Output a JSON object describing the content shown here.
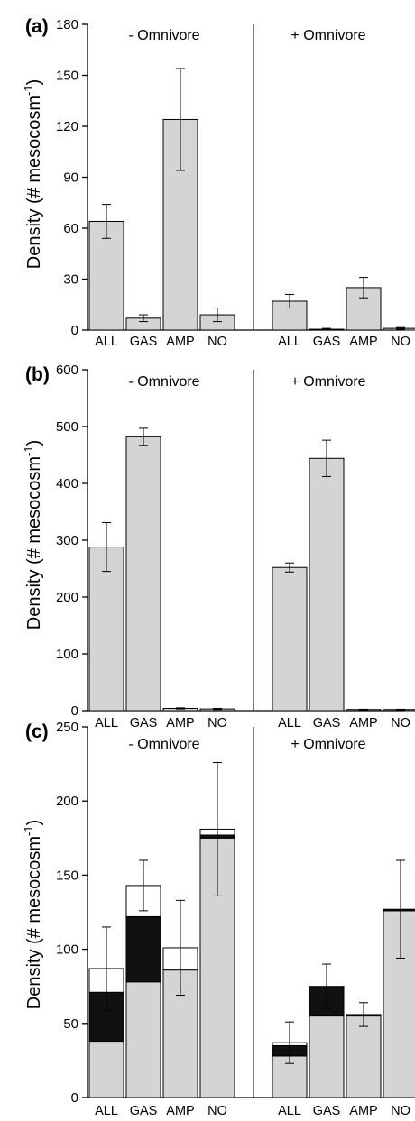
{
  "colors": {
    "gray": "#d4d4d4",
    "black": "#111111",
    "white": "#ffffff",
    "stroke": "#000000"
  },
  "chart_data": [
    {
      "type": "bar",
      "panel": "(a)",
      "ylabel": "Density (# mesocosm",
      "ylabel_sup": "-1",
      "ylabel_close": ")",
      "ylim": [
        0,
        180
      ],
      "yticks": [
        0,
        30,
        60,
        90,
        120,
        150,
        180
      ],
      "grid": false,
      "groups": [
        {
          "title": "- Omnivore",
          "categories": [
            "ALL",
            "GAS",
            "AMP",
            "NO"
          ],
          "values": [
            64,
            7,
            124,
            9
          ],
          "errors": [
            10,
            2,
            30,
            4
          ]
        },
        {
          "title": "+ Omnivore",
          "categories": [
            "ALL",
            "GAS",
            "AMP",
            "NO"
          ],
          "values": [
            17,
            0.5,
            25,
            1
          ],
          "errors": [
            4,
            0.5,
            6,
            0.5
          ]
        }
      ]
    },
    {
      "type": "bar",
      "panel": "(b)",
      "ylabel": "Density (# mesocosm",
      "ylabel_sup": "-1",
      "ylabel_close": ")",
      "ylim": [
        0,
        600
      ],
      "yticks": [
        0,
        100,
        200,
        300,
        400,
        500,
        600
      ],
      "grid": false,
      "groups": [
        {
          "title": "- Omnivore",
          "categories": [
            "ALL",
            "GAS",
            "AMP",
            "NO"
          ],
          "values": [
            288,
            482,
            4,
            3
          ],
          "errors": [
            43,
            15,
            1,
            1
          ]
        },
        {
          "title": "+ Omnivore",
          "categories": [
            "ALL",
            "GAS",
            "AMP",
            "NO"
          ],
          "values": [
            252,
            444,
            2,
            2
          ],
          "errors": [
            8,
            32,
            0.5,
            0.5
          ]
        }
      ]
    },
    {
      "type": "stacked-bar",
      "panel": "(c)",
      "ylabel": "Density (# mesocosm",
      "ylabel_sup": "-1",
      "ylabel_close": ")",
      "ylim": [
        0,
        250
      ],
      "yticks": [
        0,
        50,
        100,
        150,
        200,
        250
      ],
      "grid": false,
      "groups": [
        {
          "title": "- Omnivore",
          "categories": [
            "ALL",
            "GAS",
            "AMP",
            "NO"
          ],
          "segments": [
            {
              "gray": 38,
              "black": 33,
              "white": 16,
              "error": 28
            },
            {
              "gray": 78,
              "black": 44,
              "white": 21,
              "error": 17
            },
            {
              "gray": 86,
              "black": 0,
              "white": 15,
              "error": 32
            },
            {
              "gray": 175,
              "black": 2,
              "white": 4,
              "error": 45
            }
          ]
        },
        {
          "title": "+ Omnivore",
          "categories": [
            "ALL",
            "GAS",
            "AMP",
            "NO"
          ],
          "segments": [
            {
              "gray": 28,
              "black": 7,
              "white": 2,
              "error": 14
            },
            {
              "gray": 55,
              "black": 20,
              "white": 0,
              "error": 15
            },
            {
              "gray": 55,
              "black": 1,
              "white": 0,
              "error": 8
            },
            {
              "gray": 126,
              "black": 1,
              "white": 0,
              "error": 33
            }
          ]
        }
      ]
    }
  ]
}
